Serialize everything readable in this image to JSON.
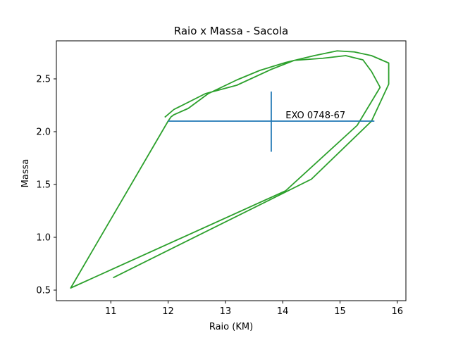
{
  "chart_data": {
    "type": "line",
    "title": "Raio x Massa - Sacola",
    "xlabel": "Raio (KM)",
    "ylabel": "Massa",
    "xlim": [
      10.05,
      16.15
    ],
    "ylim": [
      0.4,
      2.86
    ],
    "xticks": [
      11,
      12,
      13,
      14,
      15,
      16
    ],
    "yticks": [
      0.5,
      1.0,
      1.5,
      2.0,
      2.5
    ],
    "ytick_labels": [
      "0.5",
      "1.0",
      "1.5",
      "2.0",
      "2.5"
    ],
    "grid": false,
    "series": [
      {
        "color": "#2ca02c",
        "points": [
          [
            11.05,
            0.62
          ],
          [
            14.5,
            1.55
          ],
          [
            15.55,
            2.1
          ],
          [
            15.85,
            2.45
          ],
          [
            15.85,
            2.65
          ],
          [
            15.55,
            2.72
          ],
          [
            15.25,
            2.755
          ],
          [
            14.95,
            2.765
          ],
          [
            14.55,
            2.72
          ],
          [
            14.05,
            2.655
          ],
          [
            13.6,
            2.58
          ],
          [
            13.2,
            2.49
          ],
          [
            12.7,
            2.36
          ],
          [
            12.35,
            2.22
          ],
          [
            12.1,
            2.16
          ],
          [
            12.05,
            2.14
          ],
          [
            12.0,
            2.1
          ],
          [
            10.3,
            0.52
          ],
          [
            14.05,
            1.44
          ],
          [
            15.3,
            2.06
          ],
          [
            15.7,
            2.42
          ],
          [
            15.55,
            2.57
          ],
          [
            15.4,
            2.68
          ],
          [
            15.1,
            2.72
          ],
          [
            14.7,
            2.695
          ],
          [
            14.2,
            2.675
          ],
          [
            13.8,
            2.59
          ],
          [
            13.2,
            2.44
          ],
          [
            12.65,
            2.36
          ],
          [
            12.1,
            2.21
          ],
          [
            11.95,
            2.14
          ]
        ]
      }
    ],
    "errorbar": {
      "color": "#1f77b4",
      "x": 13.8,
      "y": 2.1,
      "xerr": [
        1.8,
        1.8
      ],
      "yerr": [
        0.29,
        0.28
      ],
      "label": "EXO 0748-67",
      "label_x": 14.05,
      "label_y": 2.1
    }
  }
}
